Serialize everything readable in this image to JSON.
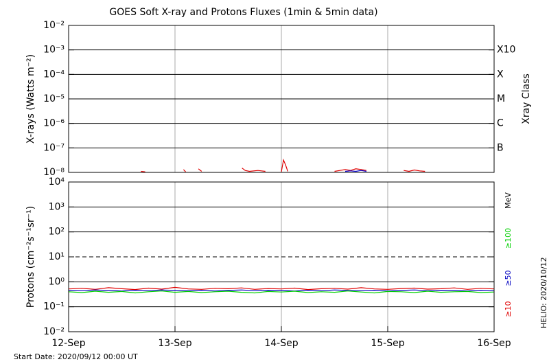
{
  "title": "GOES Soft X-ray and Protons Fluxes   (1min & 5min data)",
  "start_date": "Start Date: 2020/09/12 00:00 UT",
  "credit": "HELIO: 2020/10/12",
  "chart_data": [
    {
      "type": "line",
      "log_y": true,
      "ylabel": "X-rays (Watts m⁻²)",
      "y2label": "Xray Class",
      "xlim": [
        12,
        16
      ],
      "xticks": [
        {
          "value": 12,
          "label": "12-Sep"
        },
        {
          "value": 13,
          "label": "13-Sep"
        },
        {
          "value": 14,
          "label": "14-Sep"
        },
        {
          "value": 15,
          "label": "15-Sep"
        },
        {
          "value": 16,
          "label": "16-Sep"
        }
      ],
      "ylim": [
        1e-08,
        0.01
      ],
      "yticks": [
        {
          "value": 1e-08,
          "label": "10⁻⁸"
        },
        {
          "value": 1e-07,
          "label": "10⁻⁷"
        },
        {
          "value": 1e-06,
          "label": "10⁻⁶"
        },
        {
          "value": 1e-05,
          "label": "10⁻⁵"
        },
        {
          "value": 0.0001,
          "label": "10⁻⁴"
        },
        {
          "value": 0.001,
          "label": "10⁻³"
        },
        {
          "value": 0.01,
          "label": "10⁻²"
        }
      ],
      "class_labels": [
        {
          "value": 0.001,
          "label": "X10"
        },
        {
          "value": 0.0001,
          "label": "X"
        },
        {
          "value": 1e-05,
          "label": "M"
        },
        {
          "value": 1e-06,
          "label": "C"
        },
        {
          "value": 1e-07,
          "label": "B"
        }
      ],
      "x": [
        12.68,
        12.72,
        12.75,
        13.08,
        13.1,
        13.12,
        13.22,
        13.25,
        13.27,
        13.63,
        13.66,
        13.7,
        13.78,
        13.85,
        13.88,
        14.0,
        14.02,
        14.04,
        14.06,
        14.08,
        14.5,
        14.55,
        14.6,
        14.65,
        14.7,
        14.75,
        14.8,
        14.83,
        15.15,
        15.2,
        15.25,
        15.3,
        15.35
      ],
      "series": [
        {
          "color": "#e00000",
          "values": [
            1.1e-08,
            1.05e-08,
            null,
            1.3e-08,
            1.05e-08,
            null,
            1.4e-08,
            1.1e-08,
            null,
            1.5e-08,
            1.2e-08,
            1.1e-08,
            1.2e-08,
            1.1e-08,
            null,
            1.05e-08,
            3.2e-08,
            2e-08,
            1.1e-08,
            null,
            1.1e-08,
            1.2e-08,
            1.3e-08,
            1.2e-08,
            1.4e-08,
            1.3e-08,
            1.2e-08,
            null,
            1.2e-08,
            1.1e-08,
            1.25e-08,
            1.15e-08,
            1.1e-08
          ]
        },
        {
          "color": "#0000d0",
          "values": [
            null,
            null,
            null,
            null,
            null,
            null,
            null,
            null,
            null,
            null,
            null,
            null,
            null,
            null,
            null,
            null,
            null,
            null,
            null,
            null,
            null,
            null,
            1.1e-08,
            1.15e-08,
            1.1e-08,
            1.2e-08,
            1.1e-08,
            null,
            null,
            null,
            null,
            null,
            null
          ]
        }
      ]
    },
    {
      "type": "line",
      "log_y": true,
      "ylabel": "Protons (cm⁻²s⁻¹sr⁻¹)",
      "unit": "MeV",
      "xlim": [
        12,
        16
      ],
      "ylim": [
        0.01,
        10000
      ],
      "yticks": [
        {
          "value": 0.01,
          "label": "10⁻²"
        },
        {
          "value": 0.1,
          "label": "10⁻¹"
        },
        {
          "value": 1,
          "label": "10⁰"
        },
        {
          "value": 10,
          "label": "10¹"
        },
        {
          "value": 100,
          "label": "10²"
        },
        {
          "value": 1000,
          "label": "10³"
        },
        {
          "value": 10000,
          "label": "10⁴"
        }
      ],
      "threshold": 10,
      "x": [
        12,
        12.125,
        12.25,
        12.375,
        12.5,
        12.625,
        12.75,
        12.875,
        13,
        13.125,
        13.25,
        13.375,
        13.5,
        13.625,
        13.75,
        13.875,
        14,
        14.125,
        14.25,
        14.375,
        14.5,
        14.625,
        14.75,
        14.875,
        15,
        15.125,
        15.25,
        15.375,
        15.5,
        15.625,
        15.75,
        15.875,
        16
      ],
      "series": [
        {
          "name": "≥10",
          "color": "#e00000",
          "values": [
            0.52,
            0.55,
            0.5,
            0.58,
            0.53,
            0.49,
            0.56,
            0.51,
            0.6,
            0.52,
            0.5,
            0.55,
            0.53,
            0.57,
            0.5,
            0.54,
            0.52,
            0.56,
            0.49,
            0.53,
            0.55,
            0.51,
            0.58,
            0.52,
            0.5,
            0.54,
            0.56,
            0.51,
            0.53,
            0.57,
            0.5,
            0.55,
            0.52
          ]
        },
        {
          "name": "≥50",
          "color": "#0000c0",
          "values": [
            0.46,
            0.44,
            0.47,
            0.45,
            0.43,
            0.46,
            0.44,
            0.47,
            0.45,
            0.44,
            0.46,
            0.43,
            0.45,
            0.47,
            0.44,
            0.46,
            0.45,
            0.43,
            0.46,
            0.44,
            0.47,
            0.45,
            0.44,
            0.46,
            0.43,
            0.45,
            0.47,
            0.44,
            0.46,
            0.45,
            0.43,
            0.46,
            0.44
          ]
        },
        {
          "name": "≥100",
          "color": "#00d000",
          "values": [
            0.4,
            0.37,
            0.42,
            0.38,
            0.41,
            0.36,
            0.4,
            0.43,
            0.38,
            0.41,
            0.37,
            0.4,
            0.42,
            0.38,
            0.36,
            0.41,
            0.39,
            0.42,
            0.37,
            0.4,
            0.38,
            0.43,
            0.39,
            0.36,
            0.41,
            0.4,
            0.37,
            0.42,
            0.38,
            0.4,
            0.41,
            0.37,
            0.39
          ]
        }
      ]
    }
  ]
}
